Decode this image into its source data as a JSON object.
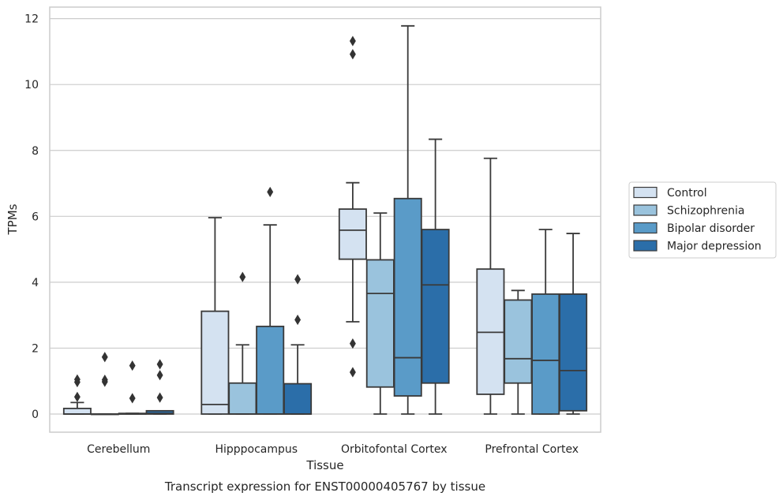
{
  "caption": "Transcript expression for ENST00000405767 by tissue",
  "chart_data": {
    "type": "box",
    "title": "",
    "xlabel": "Tissue",
    "ylabel": "TPMs",
    "ylim": [
      -0.55,
      12.35
    ],
    "yticks": [
      0,
      2,
      4,
      6,
      8,
      10,
      12
    ],
    "grid": "horizontal",
    "legend_position": "right",
    "categories": [
      "Cerebellum",
      "Hipppocampus",
      "Orbitofontal Cortex",
      "Prefrontal Cortex"
    ],
    "series": [
      {
        "name": "Control",
        "color": "#d4e2f1",
        "boxes": [
          {
            "whislo": 0,
            "q1": 0,
            "med": 0,
            "q3": 0.17,
            "whishi": 0.35,
            "fliers": [
              0.52,
              0.97,
              1.05
            ]
          },
          {
            "whislo": 0,
            "q1": 0,
            "med": 0.29,
            "q3": 3.12,
            "whishi": 5.96,
            "fliers": []
          },
          {
            "whislo": 2.8,
            "q1": 4.7,
            "med": 5.58,
            "q3": 6.22,
            "whishi": 7.02,
            "fliers": [
              1.27,
              2.14,
              10.92,
              11.32
            ]
          },
          {
            "whislo": 0,
            "q1": 0.6,
            "med": 2.48,
            "q3": 4.4,
            "whishi": 7.76,
            "fliers": []
          }
        ]
      },
      {
        "name": "Schizophrenia",
        "color": "#9ac3dd",
        "boxes": [
          {
            "whislo": 0,
            "q1": 0,
            "med": 0,
            "q3": 0,
            "whishi": 0,
            "fliers": [
              0.98,
              1.04,
              1.73
            ]
          },
          {
            "whislo": 0,
            "q1": 0,
            "med": 0,
            "q3": 0.94,
            "whishi": 2.1,
            "fliers": [
              4.16
            ]
          },
          {
            "whislo": 0,
            "q1": 0.82,
            "med": 3.66,
            "q3": 4.68,
            "whishi": 6.1,
            "fliers": []
          },
          {
            "whislo": 0,
            "q1": 0.94,
            "med": 1.68,
            "q3": 3.46,
            "whishi": 3.75,
            "fliers": []
          }
        ]
      },
      {
        "name": "Bipolar disorder",
        "color": "#5a9bc8",
        "boxes": [
          {
            "whislo": 0,
            "q1": 0,
            "med": 0,
            "q3": 0.02,
            "whishi": 0.02,
            "fliers": [
              0.48,
              1.47
            ]
          },
          {
            "whislo": 0,
            "q1": 0,
            "med": 0,
            "q3": 2.66,
            "whishi": 5.74,
            "fliers": [
              6.74
            ]
          },
          {
            "whislo": 0,
            "q1": 0.55,
            "med": 1.71,
            "q3": 6.54,
            "whishi": 11.78,
            "fliers": []
          },
          {
            "whislo": 0,
            "q1": 0,
            "med": 1.63,
            "q3": 3.64,
            "whishi": 5.6,
            "fliers": []
          }
        ]
      },
      {
        "name": "Major depression",
        "color": "#2b6ea9",
        "boxes": [
          {
            "whislo": 0,
            "q1": 0,
            "med": 0.02,
            "q3": 0.1,
            "whishi": 0.1,
            "fliers": [
              0.5,
              1.18,
              1.51
            ]
          },
          {
            "whislo": 0,
            "q1": 0,
            "med": 0,
            "q3": 0.92,
            "whishi": 2.1,
            "fliers": [
              2.86,
              4.09
            ]
          },
          {
            "whislo": 0,
            "q1": 0.94,
            "med": 3.92,
            "q3": 5.6,
            "whishi": 8.34,
            "fliers": []
          },
          {
            "whislo": 0,
            "q1": 0.1,
            "med": 1.32,
            "q3": 3.64,
            "whishi": 5.48,
            "fliers": []
          }
        ]
      }
    ]
  }
}
